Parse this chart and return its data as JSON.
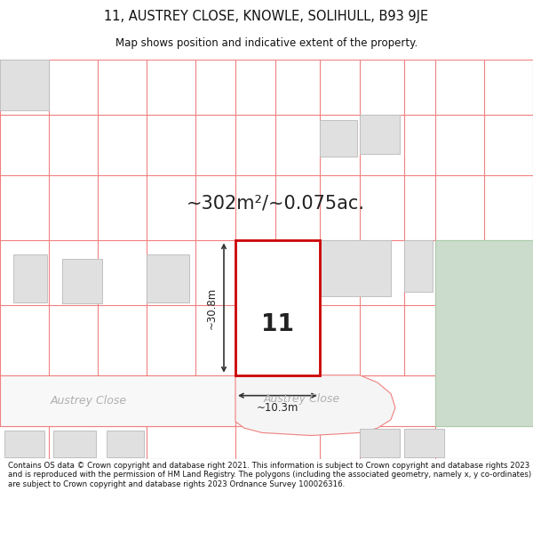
{
  "title_line1": "11, AUSTREY CLOSE, KNOWLE, SOLIHULL, B93 9JE",
  "title_line2": "Map shows position and indicative extent of the property.",
  "area_text": "~302m²/~0.075ac.",
  "property_number": "11",
  "dim_height": "~30.8m",
  "dim_width": "~10.3m",
  "street_name_left": "Austrey Close",
  "street_name_right": "Austrey Close",
  "footer_text": "Contains OS data © Crown copyright and database right 2021. This information is subject to Crown copyright and database rights 2023 and is reproduced with the permission of HM Land Registry. The polygons (including the associated geometry, namely x, y co-ordinates) are subject to Crown copyright and database rights 2023 Ordnance Survey 100026316.",
  "bg_color": "#ffffff",
  "map_bg": "#ffffff",
  "property_fill": "#ffffff",
  "property_edge": "#cc0000",
  "pink": "#f08080",
  "bfill": "#e0e0e0",
  "bedge": "#c0c0c0",
  "green_fill": "#ccdccc",
  "green_edge": "#aaccaa",
  "dim_color": "#333333",
  "text_color": "#222222",
  "street_color": "#b0b0b0"
}
